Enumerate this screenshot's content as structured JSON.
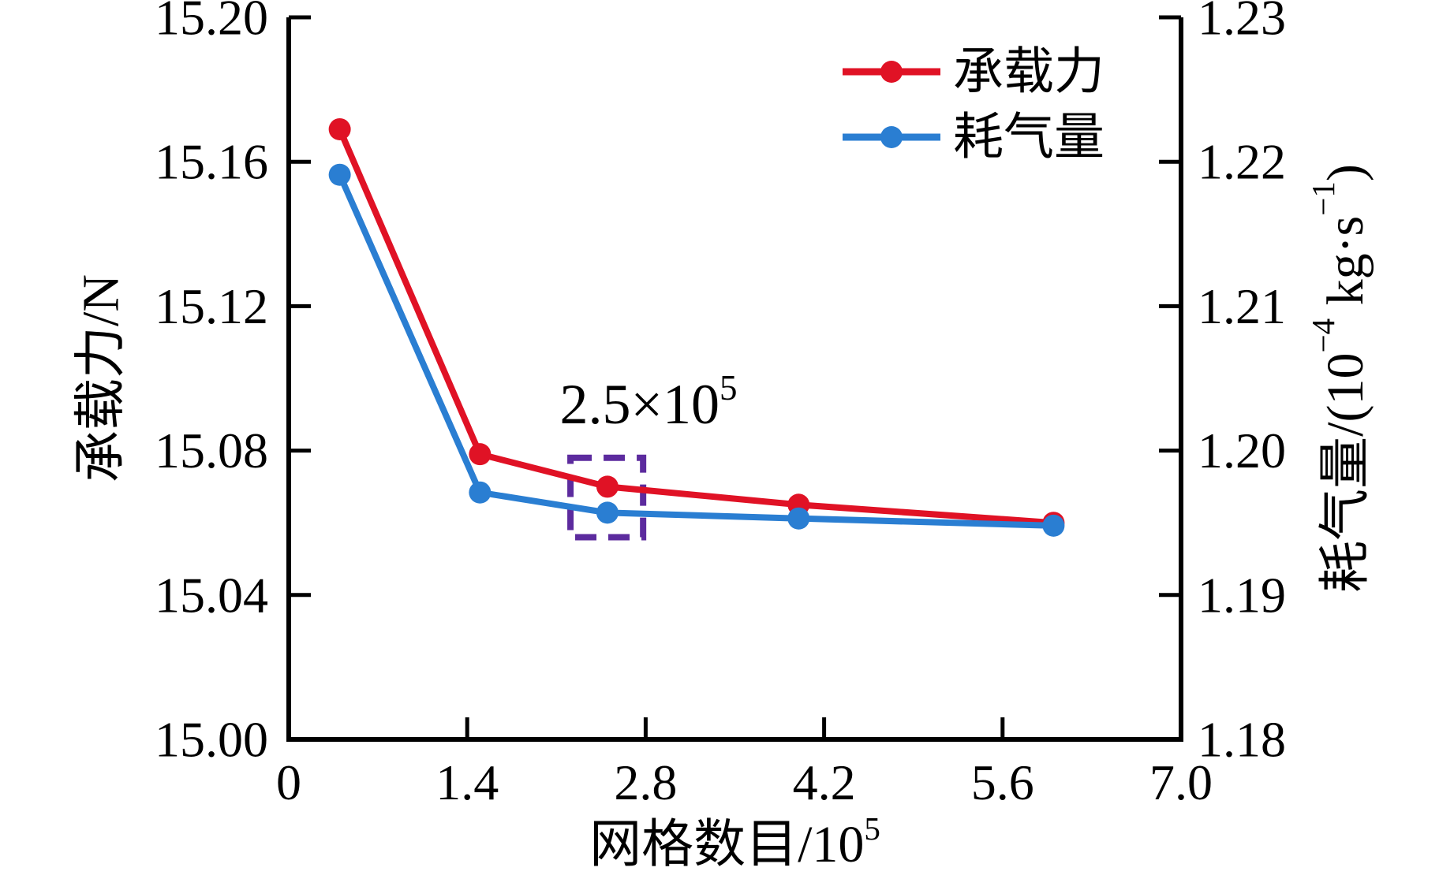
{
  "page": {
    "background": "#ffffff"
  },
  "chart_data": {
    "type": "line",
    "title": "",
    "grid": false,
    "axis_color": "#000000",
    "x_axis": {
      "label_parts": [
        {
          "t": "网格数目/10"
        },
        {
          "t": "5",
          "sup": true
        }
      ],
      "range": [
        0,
        7.0
      ],
      "ticks": [
        {
          "v": 0,
          "label": "0"
        },
        {
          "v": 1.4,
          "label": "1.4"
        },
        {
          "v": 2.8,
          "label": "2.8"
        },
        {
          "v": 4.2,
          "label": "4.2"
        },
        {
          "v": 5.6,
          "label": "5.6"
        },
        {
          "v": 7.0,
          "label": "7.0"
        }
      ]
    },
    "y_left_axis": {
      "label": "承载力/N",
      "range": [
        15.0,
        15.2
      ],
      "ticks": [
        {
          "v": 15.0,
          "label": "15.00"
        },
        {
          "v": 15.04,
          "label": "15.04"
        },
        {
          "v": 15.08,
          "label": "15.08"
        },
        {
          "v": 15.12,
          "label": "15.12"
        },
        {
          "v": 15.16,
          "label": "15.16"
        },
        {
          "v": 15.2,
          "label": "15.20"
        }
      ]
    },
    "y_right_axis": {
      "label_parts": [
        {
          "t": "耗气量/(10"
        },
        {
          "t": "−4",
          "sup": true
        },
        {
          "t": " kg·s"
        },
        {
          "t": "−1",
          "sup": true
        },
        {
          "t": ")"
        }
      ],
      "range": [
        1.18,
        1.23
      ],
      "ticks": [
        {
          "v": 1.18,
          "label": "1.18"
        },
        {
          "v": 1.19,
          "label": "1.19"
        },
        {
          "v": 1.2,
          "label": "1.20"
        },
        {
          "v": 1.21,
          "label": "1.21"
        },
        {
          "v": 1.22,
          "label": "1.22"
        },
        {
          "v": 1.23,
          "label": "1.23"
        }
      ]
    },
    "series": [
      {
        "name": "承载力",
        "axis": "left",
        "color": "#e01225",
        "x": [
          0.4,
          1.5,
          2.5,
          4.0,
          6.0
        ],
        "values": [
          15.169,
          15.079,
          15.07,
          15.065,
          15.06
        ]
      },
      {
        "name": "耗气量",
        "axis": "right",
        "color": "#2a7ed2",
        "x": [
          0.4,
          1.5,
          2.5,
          4.0,
          6.0
        ],
        "values": [
          1.2191,
          1.1971,
          1.1957,
          1.1953,
          1.1948
        ]
      }
    ],
    "legend": {
      "position": "top-right",
      "items": [
        "承载力",
        "耗气量"
      ]
    },
    "annotation": {
      "text_parts": [
        {
          "t": "2.5×10"
        },
        {
          "t": "5",
          "sup": true
        }
      ],
      "box_color": "#5c2b9e",
      "box_x_range": [
        2.21,
        2.78
      ],
      "box_y_left_range": [
        15.056,
        15.078
      ]
    }
  }
}
